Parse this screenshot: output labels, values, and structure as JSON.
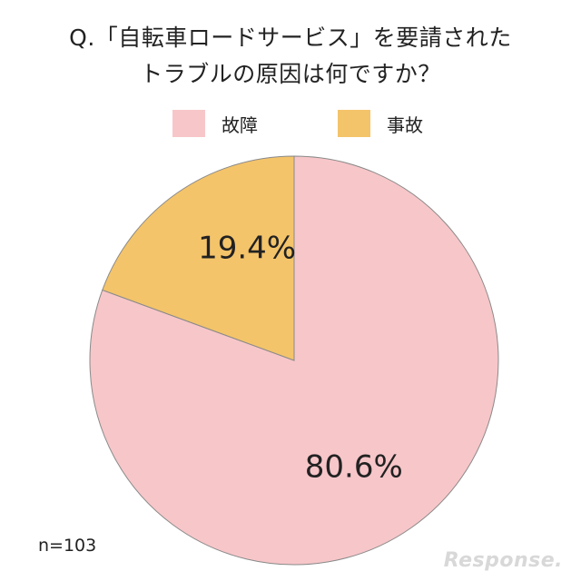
{
  "title_line1": "Q.「自転車ロードサービス」を要請された",
  "title_line2": "トラブルの原因は何ですか？",
  "footnote": "n=103",
  "watermark": "Response.",
  "chart_data": {
    "type": "pie",
    "start_angle_deg": 0,
    "direction": "clockwise",
    "slices": [
      {
        "label": "故障",
        "value": 80.6,
        "display": "80.6%",
        "color": "#f7c6c9"
      },
      {
        "label": "事故",
        "value": 19.4,
        "display": "19.4%",
        "color": "#f4c46a"
      }
    ],
    "legend_position": "top"
  }
}
